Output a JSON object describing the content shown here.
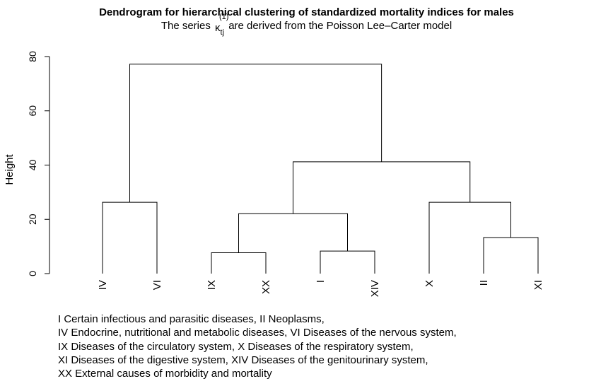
{
  "title": "Dendrogram for hierarchical clustering of standardized mortality indices for males",
  "subtitle": {
    "before": "The series",
    "symbol": "κ",
    "subscript": "tj",
    "superscript": "(1)",
    "after": "are derived from the Poisson Lee–Carter model"
  },
  "legend_lines": [
    "I Certain infectious and parasitic diseases, II Neoplasms,",
    "IV Endocrine, nutritional and metabolic diseases, VI Diseases of the nervous system,",
    "IX Diseases of the circulatory system, X Diseases of the respiratory system,",
    "XI Diseases of the digestive system, XIV Diseases of the genitourinary system,",
    "XX External causes of morbidity and mortality"
  ],
  "chart_data": {
    "type": "dendrogram",
    "ylabel": "Height",
    "ylim": [
      0,
      80
    ],
    "yticks": [
      0,
      20,
      40,
      60,
      80
    ],
    "leaves": [
      "IV",
      "VI",
      "IX",
      "XX",
      "I",
      "XIV",
      "X",
      "II",
      "XI"
    ],
    "merges": [
      {
        "left": "IX",
        "right": "XX",
        "height": 7.7
      },
      {
        "left": "I",
        "right": "XIV",
        "height": 8.3
      },
      {
        "left": "II",
        "right": "XI",
        "height": 13.3
      },
      {
        "left": "IV",
        "right": "VI",
        "height": 26.3
      },
      {
        "left": "X",
        "right": "(II, XI)",
        "height": 26.3
      },
      {
        "left": "(IX, XX)",
        "right": "(I, XIV)",
        "height": 22.1
      },
      {
        "left": "((IX, XX), (I, XIV))",
        "right": "(X, (II, XI))",
        "height": 41.2
      },
      {
        "left": "(IV, VI)",
        "right": "rest",
        "height": 77.2
      }
    ]
  }
}
